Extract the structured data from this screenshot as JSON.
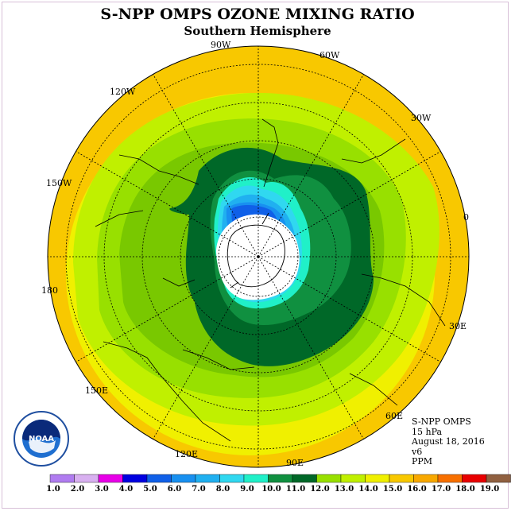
{
  "title": "S-NPP OMPS OZONE MIXING RATIO",
  "subtitle": "Southern Hemisphere",
  "longitude_labels": [
    {
      "text": "0"
    },
    {
      "text": "30W"
    },
    {
      "text": "60W"
    },
    {
      "text": "90W"
    },
    {
      "text": "120W"
    },
    {
      "text": "150W"
    },
    {
      "text": "180"
    },
    {
      "text": "150E"
    },
    {
      "text": "120E"
    },
    {
      "text": "90E"
    },
    {
      "text": "60E"
    },
    {
      "text": "30E"
    }
  ],
  "info": {
    "instrument": "S-NPP OMPS",
    "level": "15 hPa",
    "date": "August 18, 2016",
    "version": "v6",
    "units": "PPM"
  },
  "logo": {
    "text": "NOAA"
  },
  "colorbar": {
    "labels": [
      "1.0",
      "2.0",
      "3.0",
      "4.0",
      "5.0",
      "6.0",
      "7.0",
      "8.0",
      "9.0",
      "10.0",
      "11.0",
      "12.0",
      "13.0",
      "14.0",
      "15.0",
      "16.0",
      "17.0",
      "18.0",
      "19.0"
    ],
    "colors": [
      "#b07cf0",
      "#d8b0f0",
      "#e800e8",
      "#0000e0",
      "#1060e8",
      "#1890f0",
      "#20b0f0",
      "#30d8f0",
      "#20f0c8",
      "#109040",
      "#006828",
      "#98e000",
      "#c0f000",
      "#f0f000",
      "#f8c800",
      "#f8a800",
      "#f87000",
      "#e80000",
      "#906040"
    ]
  }
}
